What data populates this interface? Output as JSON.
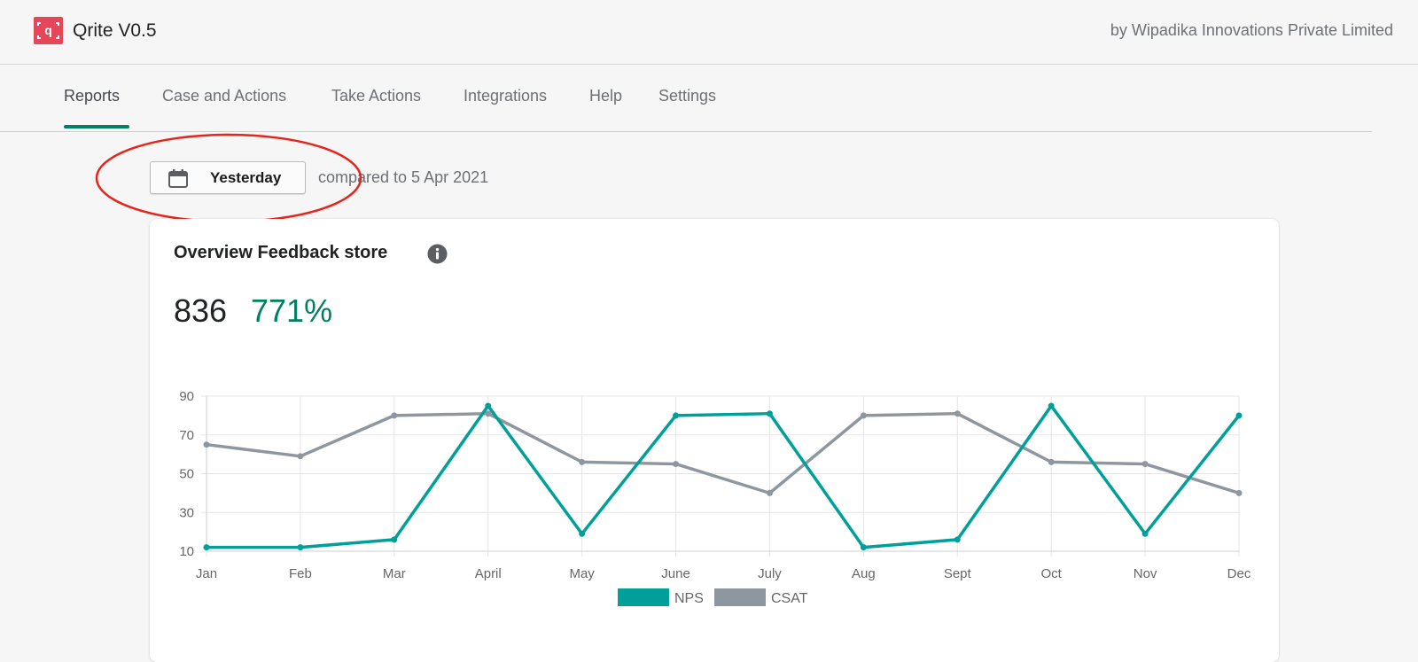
{
  "header": {
    "app_title": "Qrite V0.5",
    "byline": "by Wipadika Innovations Private Limited",
    "logo_icon": "qrite-logo-icon",
    "logo_color": "#e4475a"
  },
  "nav": {
    "tabs": [
      {
        "label": "Reports",
        "active": true
      },
      {
        "label": "Case and Actions",
        "active": false
      },
      {
        "label": "Take Actions",
        "active": false
      },
      {
        "label": "Integrations",
        "active": false
      },
      {
        "label": "Help",
        "active": false
      },
      {
        "label": "Settings",
        "active": false
      }
    ],
    "active_color": "#008060"
  },
  "date_filter": {
    "icon": "calendar-icon",
    "label": "Yesterday",
    "compare_text": "compared to 5 Apr 2021"
  },
  "card": {
    "title": "Overview Feedback store",
    "info_icon": "info-icon",
    "metric_value": "836",
    "metric_change": "771%",
    "change_color": "#008060"
  },
  "chart_data": {
    "type": "line",
    "categories": [
      "Jan",
      "Feb",
      "Mar",
      "April",
      "May",
      "June",
      "July",
      "Aug",
      "Sept",
      "Oct",
      "Nov",
      "Dec"
    ],
    "series": [
      {
        "name": "NPS",
        "color": "#00a09a",
        "values": [
          12,
          12,
          16,
          85,
          19,
          80,
          81,
          12,
          16,
          85,
          19,
          80
        ]
      },
      {
        "name": "CSAT",
        "color": "#8e979f",
        "values": [
          65,
          59,
          80,
          81,
          56,
          55,
          40,
          80,
          81,
          56,
          55,
          40
        ]
      }
    ],
    "yticks": [
      10,
      30,
      50,
      70,
      90
    ],
    "ylim": [
      10,
      90
    ],
    "grid": true,
    "legend": "bottom-center"
  }
}
